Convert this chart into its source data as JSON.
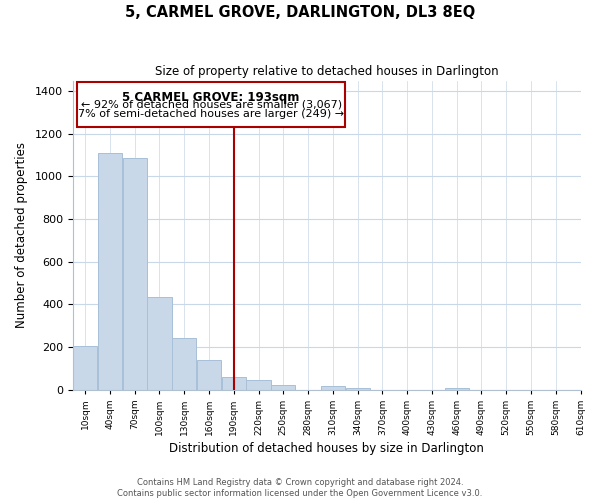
{
  "title": "5, CARMEL GROVE, DARLINGTON, DL3 8EQ",
  "subtitle": "Size of property relative to detached houses in Darlington",
  "xlabel": "Distribution of detached houses by size in Darlington",
  "ylabel": "Number of detached properties",
  "bar_color": "#c8d8e8",
  "bar_edge_color": "#a8c0d8",
  "background_color": "#ffffff",
  "grid_color": "#c8d8e8",
  "annotation_line_color": "#aa0000",
  "annotation_box_color": "#ffffff",
  "annotation_text_line1": "5 CARMEL GROVE: 193sqm",
  "annotation_text_line2": "← 92% of detached houses are smaller (3,067)",
  "annotation_text_line3": "7% of semi-detached houses are larger (249) →",
  "property_line_x": 205,
  "bin_edges": [
    10,
    40,
    70,
    100,
    130,
    160,
    190,
    220,
    250,
    280,
    310,
    340,
    370,
    400,
    430,
    460,
    490,
    520,
    550,
    580,
    610
  ],
  "bin_labels": [
    "10sqm",
    "40sqm",
    "70sqm",
    "100sqm",
    "130sqm",
    "160sqm",
    "190sqm",
    "220sqm",
    "250sqm",
    "280sqm",
    "310sqm",
    "340sqm",
    "370sqm",
    "400sqm",
    "430sqm",
    "460sqm",
    "490sqm",
    "520sqm",
    "550sqm",
    "580sqm",
    "610sqm"
  ],
  "bar_heights": [
    205,
    1110,
    1085,
    435,
    240,
    140,
    60,
    45,
    20,
    0,
    15,
    10,
    0,
    0,
    0,
    10,
    0,
    0,
    0,
    0
  ],
  "ylim": [
    0,
    1450
  ],
  "xlim": [
    10,
    625
  ],
  "footer_line1": "Contains HM Land Registry data © Crown copyright and database right 2024.",
  "footer_line2": "Contains public sector information licensed under the Open Government Licence v3.0."
}
